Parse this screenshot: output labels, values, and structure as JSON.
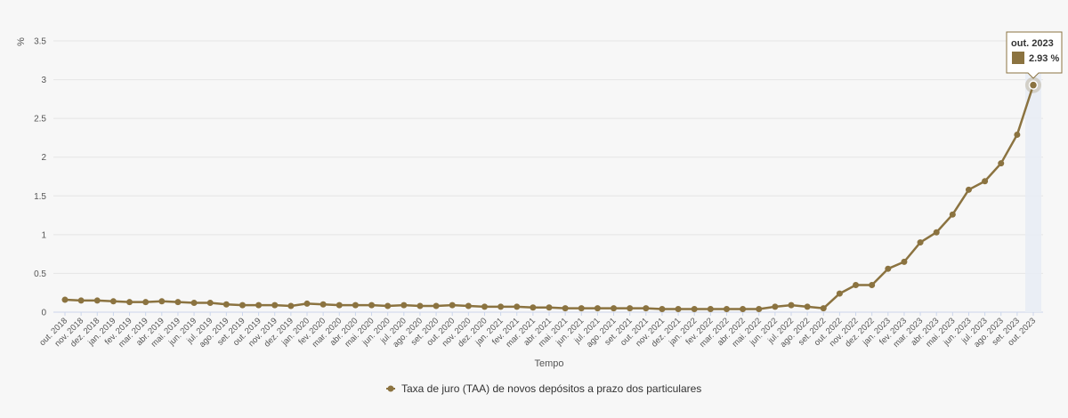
{
  "chart_data": {
    "type": "line",
    "ylabel": "%",
    "xlabel": "Tempo",
    "ylim": [
      0,
      3.5
    ],
    "yticks": [
      "0",
      "0.5",
      "1",
      "1.5",
      "2",
      "2.5",
      "3",
      "3.5"
    ],
    "grid": true,
    "legend_position": "bottom-center",
    "categories": [
      "out. 2018",
      "nov. 2018",
      "dez. 2018",
      "jan. 2019",
      "fev. 2019",
      "mar. 2019",
      "abr. 2019",
      "mai. 2019",
      "jun. 2019",
      "jul. 2019",
      "ago. 2019",
      "set. 2019",
      "out. 2019",
      "nov. 2019",
      "dez. 2019",
      "jan. 2020",
      "fev. 2020",
      "mar. 2020",
      "abr. 2020",
      "mai. 2020",
      "jun. 2020",
      "jul. 2020",
      "ago. 2020",
      "set. 2020",
      "out. 2020",
      "nov. 2020",
      "dez. 2020",
      "jan. 2021",
      "fev. 2021",
      "mar. 2021",
      "abr. 2021",
      "mai. 2021",
      "jun. 2021",
      "jul. 2021",
      "ago. 2021",
      "set. 2021",
      "out. 2021",
      "nov. 2021",
      "dez. 2021",
      "jan. 2022",
      "fev. 2022",
      "mar. 2022",
      "abr. 2022",
      "mai. 2022",
      "jun. 2022",
      "jul. 2022",
      "ago. 2022",
      "set. 2022",
      "out. 2022",
      "nov. 2022",
      "dez. 2022",
      "jan. 2023",
      "fev. 2023",
      "mar. 2023",
      "abr. 2023",
      "mai. 2023",
      "jun. 2023",
      "jul. 2023",
      "ago. 2023",
      "set. 2023",
      "out. 2023"
    ],
    "series": [
      {
        "name": "Taxa de juro (TAA) de novos depósitos a prazo dos particulares",
        "color": "#8b7340",
        "values": [
          0.16,
          0.15,
          0.15,
          0.14,
          0.13,
          0.13,
          0.14,
          0.13,
          0.12,
          0.12,
          0.1,
          0.09,
          0.09,
          0.09,
          0.08,
          0.11,
          0.1,
          0.09,
          0.09,
          0.09,
          0.08,
          0.09,
          0.08,
          0.08,
          0.09,
          0.08,
          0.07,
          0.07,
          0.07,
          0.06,
          0.06,
          0.05,
          0.05,
          0.05,
          0.05,
          0.05,
          0.05,
          0.04,
          0.04,
          0.04,
          0.04,
          0.04,
          0.04,
          0.04,
          0.07,
          0.09,
          0.07,
          0.05,
          0.24,
          0.35,
          0.35,
          0.56,
          0.65,
          0.9,
          1.03,
          1.26,
          1.58,
          1.69,
          1.92,
          2.29,
          2.93
        ]
      }
    ],
    "tooltip": {
      "title": "out. 2023",
      "value_text": "2.93 %",
      "index": 60
    }
  }
}
